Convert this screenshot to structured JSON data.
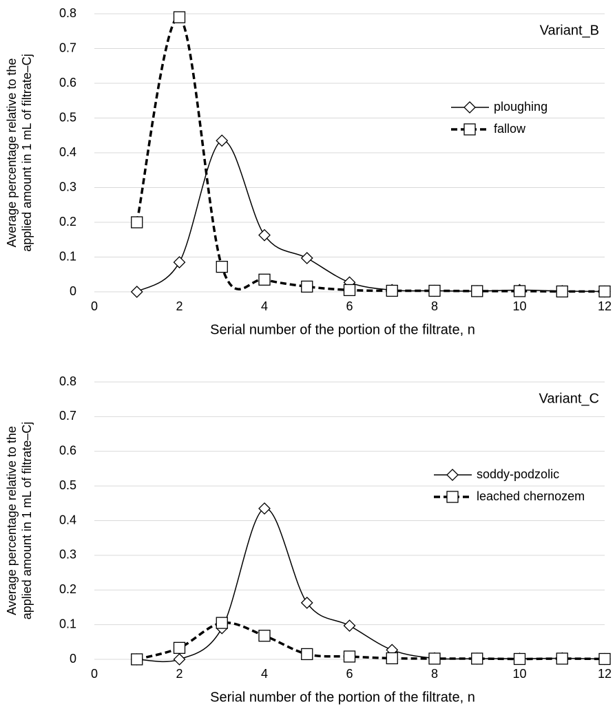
{
  "chart_data": [
    {
      "type": "line",
      "annotation": "Variant_B",
      "x_label": "Serial number of the portion of the filtrate, n",
      "y_label": [
        "Average percentage relative to the",
        "applied amount in 1 mL of filtrate–Cj"
      ],
      "xlim": [
        0,
        12
      ],
      "xticks": [
        0,
        2,
        4,
        6,
        8,
        10,
        12
      ],
      "ylim": [
        0,
        0.8
      ],
      "yticks": [
        0,
        0.1,
        0.2,
        0.3,
        0.4,
        0.5,
        0.6,
        0.7,
        0.8
      ],
      "grid": true,
      "x": [
        1,
        2,
        3,
        4,
        5,
        6,
        7,
        8,
        9,
        10,
        11,
        12
      ],
      "series": [
        {
          "name": "ploughing",
          "color": "#000000",
          "marker": "diamond",
          "line_style": "solid",
          "values": [
            0,
            0.085,
            0.435,
            0.163,
            0.097,
            0.027,
            0.005,
            0.003,
            0.002,
            0.005,
            0.002,
            0.001
          ]
        },
        {
          "name": "fallow",
          "color": "#000000",
          "marker": "square",
          "line_style": "dashed",
          "values": [
            0.2,
            0.79,
            0.072,
            0.035,
            0.015,
            0.005,
            0.003,
            0.003,
            0.002,
            0.002,
            0.001,
            0.001
          ]
        }
      ]
    },
    {
      "type": "line",
      "annotation": "Variant_C",
      "x_label": "Serial number of the portion of the filtrate, n",
      "y_label": [
        "Average percentage relative to the",
        "applied amount in 1 mL of filtrate–Cj"
      ],
      "xlim": [
        0,
        12
      ],
      "xticks": [
        0,
        2,
        4,
        6,
        8,
        10,
        12
      ],
      "ylim": [
        0,
        0.8
      ],
      "yticks": [
        0,
        0.1,
        0.2,
        0.3,
        0.4,
        0.5,
        0.6,
        0.7,
        0.8
      ],
      "grid": true,
      "x": [
        1,
        2,
        3,
        4,
        5,
        6,
        7,
        8,
        9,
        10,
        11,
        12
      ],
      "series": [
        {
          "name": "soddy-podzolic",
          "color": "#000000",
          "marker": "diamond",
          "line_style": "solid",
          "values": [
            0,
            0,
            0.09,
            0.435,
            0.163,
            0.097,
            0.027,
            0.003,
            0.002,
            0.002,
            0.003,
            0.001
          ]
        },
        {
          "name": "leached chernozem",
          "color": "#000000",
          "marker": "square",
          "line_style": "dashed",
          "values": [
            0,
            0.033,
            0.105,
            0.068,
            0.015,
            0.008,
            0.003,
            0.002,
            0.002,
            0.001,
            0.002,
            0.001
          ]
        }
      ]
    }
  ]
}
